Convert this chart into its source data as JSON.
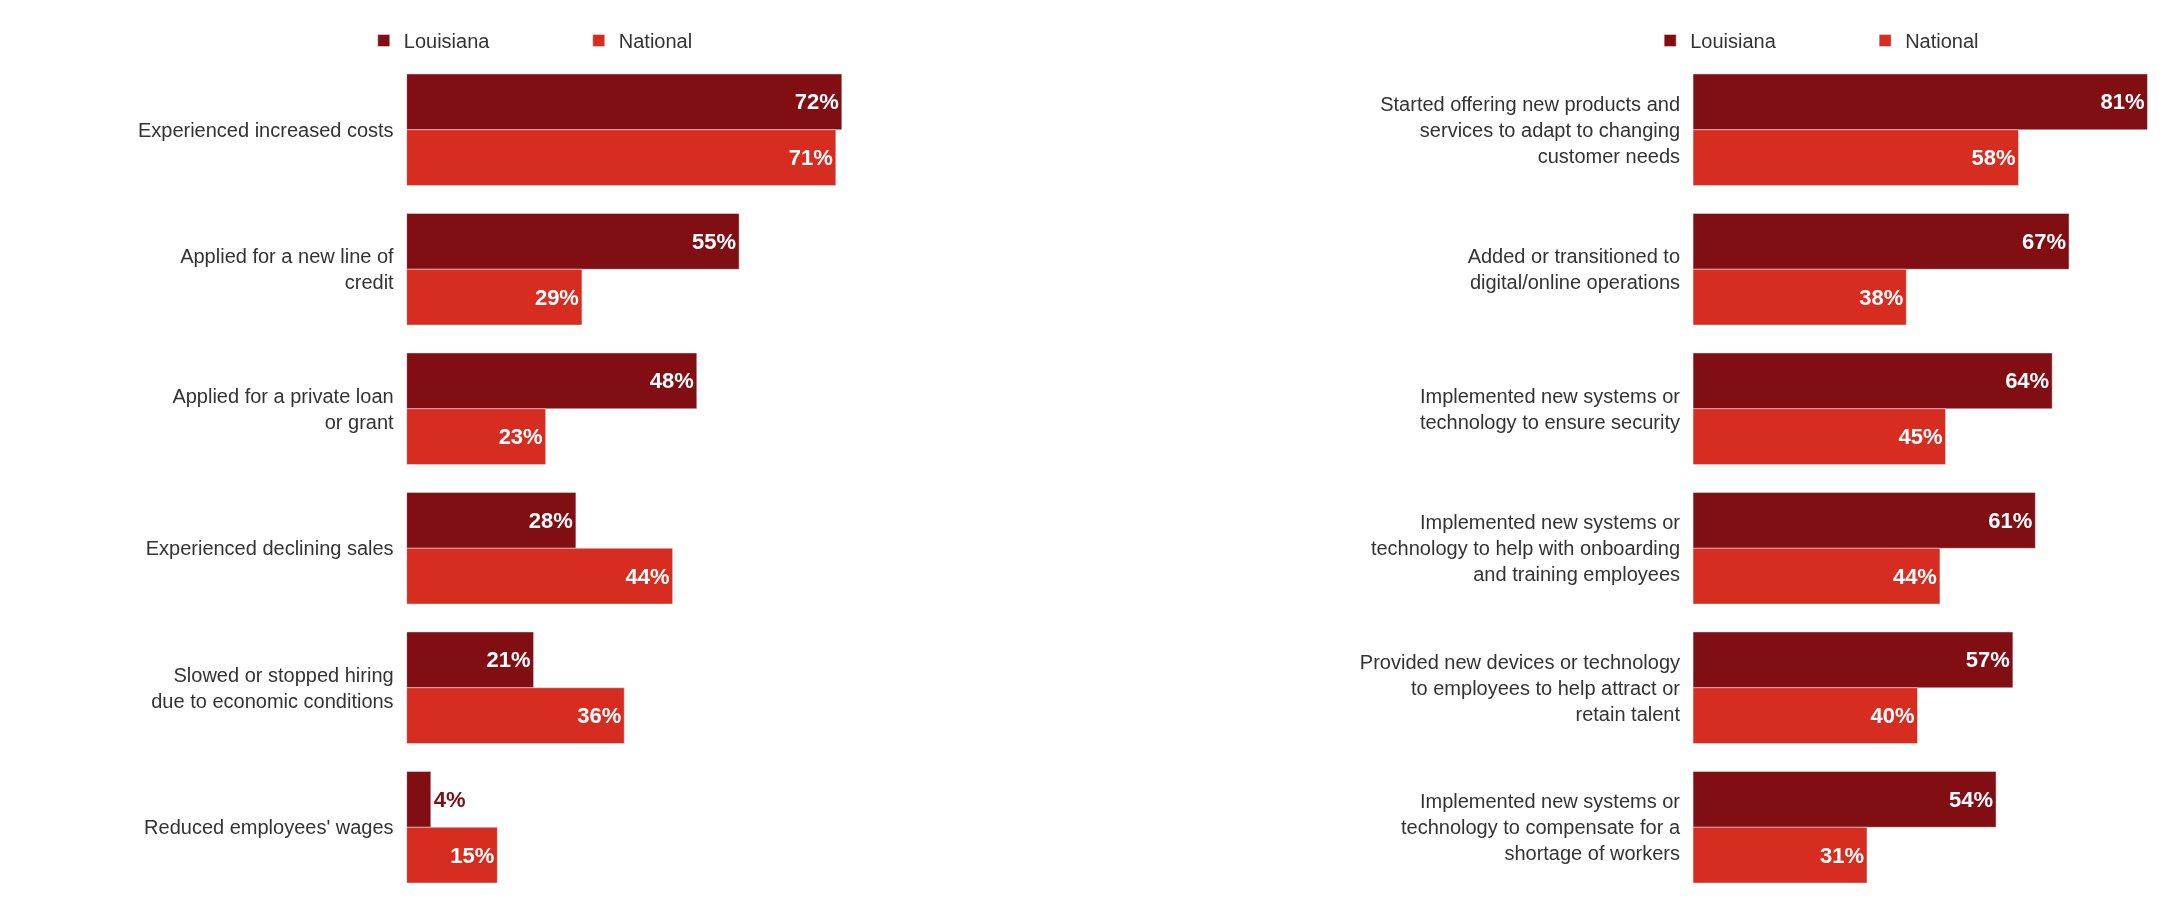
{
  "chart_data": [
    {
      "type": "bar",
      "orientation": "horizontal",
      "legend": "top",
      "categories": [
        "Experienced increased costs",
        "Applied for a new line of credit",
        "Applied for a private loan or grant",
        "Experienced declining sales",
        "Slowed or stopped hiring due to economic conditions",
        "Reduced employees' wages"
      ],
      "series": [
        {
          "name": "Louisiana",
          "color": "#800e13",
          "values": [
            72,
            55,
            48,
            28,
            21,
            4
          ],
          "value_labels": [
            "72%",
            "55%",
            "48%",
            "28%",
            "21%",
            "4%"
          ]
        },
        {
          "name": "National",
          "color": "#d72c20",
          "values": [
            71,
            29,
            23,
            44,
            36,
            15
          ],
          "value_labels": [
            "71%",
            "29%",
            "23%",
            "44%",
            "36%",
            "15%"
          ]
        }
      ]
    },
    {
      "type": "bar",
      "orientation": "horizontal",
      "legend": "top",
      "categories": [
        "Started offering new products and services to adapt to changing customer needs",
        "Added or transitioned to digital/online operations",
        "Implemented new systems or technology to ensure security",
        "Implemented new systems or technology to help with onboarding and training employees",
        "Provided new devices or technology to employees to help attract or retain talent",
        "Implemented new systems or technology to compensate for a shortage of workers"
      ],
      "series": [
        {
          "name": "Louisiana",
          "color": "#800e13",
          "values": [
            81,
            67,
            64,
            61,
            57,
            54
          ],
          "value_labels": [
            "81%",
            "67%",
            "64%",
            "61%",
            "57%",
            "54%"
          ]
        },
        {
          "name": "National",
          "color": "#d72c20",
          "values": [
            58,
            38,
            45,
            44,
            40,
            31
          ],
          "value_labels": [
            "58%",
            "38%",
            "45%",
            "44%",
            "40%",
            "31%"
          ]
        }
      ]
    }
  ]
}
